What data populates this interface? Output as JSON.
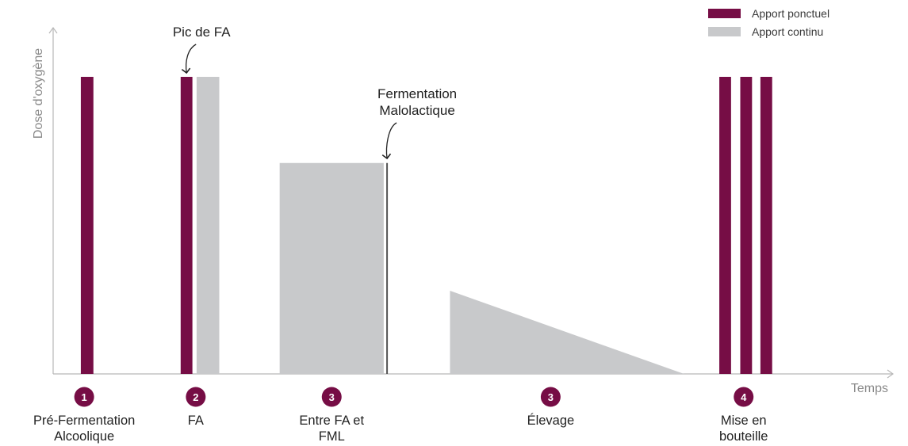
{
  "colors": {
    "ponctuel": "#760d45",
    "continu": "#c8c9cb",
    "axis": "#b8b8b8",
    "text": "#222222"
  },
  "chart_data": {
    "type": "bar",
    "title": "",
    "xlabel": "Temps",
    "ylabel": "Dose d'oxygène",
    "xlim": [
      0,
      100
    ],
    "ylim": [
      0,
      100
    ],
    "grid": false,
    "legend_position": "top-right",
    "legend": [
      {
        "key": "ponctuel",
        "label": "Apport ponctuel"
      },
      {
        "key": "continu",
        "label": "Apport continu"
      }
    ],
    "series": [
      {
        "key": "ponctuel",
        "bars": [
          {
            "x0": 3.3,
            "x1": 4.8,
            "y": 100
          },
          {
            "x0": 15.2,
            "x1": 16.6,
            "y": 100
          },
          {
            "x0": 79.4,
            "x1": 80.8,
            "y": 100
          },
          {
            "x0": 81.9,
            "x1": 83.3,
            "y": 100
          },
          {
            "x0": 84.3,
            "x1": 85.7,
            "y": 100
          }
        ]
      },
      {
        "key": "continu",
        "bars": [
          {
            "x0": 17.1,
            "x1": 19.8,
            "y": 100
          },
          {
            "x0": 27.0,
            "x1": 39.4,
            "y": 71
          }
        ],
        "ramps": [
          {
            "x0": 47.3,
            "x1": 75.2,
            "y_start": 28,
            "y_end": 0
          }
        ]
      }
    ],
    "markers": [
      {
        "x": 39.8,
        "y": 71
      }
    ],
    "annotations": [
      {
        "lines": [
          "Pic de FA"
        ],
        "target_x": 15.9
      },
      {
        "lines": [
          "Fermentation",
          "Malolactique"
        ],
        "target_x": 39.8
      }
    ],
    "phases": [
      {
        "num": "1",
        "x": 3.7,
        "lines": [
          "Pré-Fermentation",
          "Alcoolique"
        ]
      },
      {
        "num": "2",
        "x": 17.0,
        "lines": [
          "FA"
        ]
      },
      {
        "num": "3",
        "x": 33.2,
        "lines": [
          "Entre FA et",
          "FML"
        ]
      },
      {
        "num": "3",
        "x": 59.3,
        "lines": [
          "Élevage"
        ]
      },
      {
        "num": "4",
        "x": 82.3,
        "lines": [
          "Mise en",
          "bouteille"
        ]
      }
    ]
  }
}
